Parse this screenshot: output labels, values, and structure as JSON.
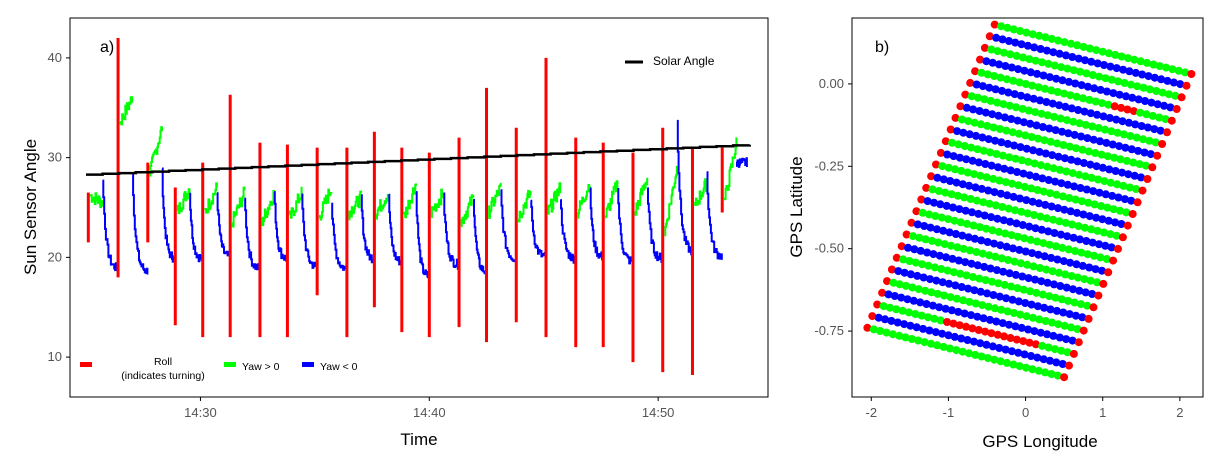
{
  "figure": {
    "panels": [
      "a)",
      "b)"
    ]
  },
  "chart_data": [
    {
      "type": "line",
      "panel_label": "a)",
      "xlabel": "Time",
      "ylabel": "Sun Sensor Angle",
      "x_ticks": [
        "14:30",
        "14:40",
        "14:50"
      ],
      "x_tick_minutes": [
        30,
        40,
        50
      ],
      "xlim_minutes": [
        24.3,
        54.8
      ],
      "y_ticks": [
        10,
        20,
        30,
        40
      ],
      "ylim": [
        6,
        44
      ],
      "grid": false,
      "legend_top": {
        "label": "Solar Angle",
        "color": "#000000",
        "placement": "top-right"
      },
      "legend_bottom": [
        {
          "label": "Roll",
          "sublabel": "(indicates turning)",
          "color": "#ff0000"
        },
        {
          "label": "Yaw > 0",
          "color": "#00ff00"
        },
        {
          "label": "Yaw < 0",
          "color": "#0000ff"
        }
      ],
      "solar_angle": {
        "x": [
          25.0,
          54.0
        ],
        "y": [
          28.3,
          31.3
        ],
        "color": "#000000"
      },
      "cycles": [
        {
          "t": 25.1,
          "green_start": 26.2,
          "green_end": 25.5,
          "blue_top": 28.0,
          "blue_end": 18.8,
          "roll_bottom": 21.5,
          "roll_top": 26.5
        },
        {
          "t": 26.4,
          "green_start": 33.5,
          "green_end": 36.0,
          "blue_top": 28.5,
          "blue_end": 18.5,
          "roll_bottom": 18.0,
          "roll_top": 42.0
        },
        {
          "t": 27.7,
          "green_start": 28.5,
          "green_end": 33.0,
          "blue_top": 28.5,
          "blue_end": 19.8,
          "roll_bottom": 21.5,
          "roll_top": 29.5
        },
        {
          "t": 28.9,
          "green_start": 24.5,
          "green_end": 27.0,
          "blue_top": 26.5,
          "blue_end": 19.8,
          "roll_bottom": 13.2,
          "roll_top": 27.0
        },
        {
          "t": 30.1,
          "green_start": 24.5,
          "green_end": 27.0,
          "blue_top": 26.5,
          "blue_end": 20.0,
          "roll_bottom": 12.0,
          "roll_top": 29.5
        },
        {
          "t": 31.3,
          "green_start": 23.5,
          "green_end": 26.5,
          "blue_top": 26.2,
          "blue_end": 18.8,
          "roll_bottom": 12.0,
          "roll_top": 36.3
        },
        {
          "t": 32.6,
          "green_start": 23.5,
          "green_end": 26.5,
          "blue_top": 26.5,
          "blue_end": 19.8,
          "roll_bottom": 12.0,
          "roll_top": 31.5
        },
        {
          "t": 33.8,
          "green_start": 23.8,
          "green_end": 26.5,
          "blue_top": 26.2,
          "blue_end": 19.0,
          "roll_bottom": 12.0,
          "roll_top": 31.3
        },
        {
          "t": 35.1,
          "green_start": 24.0,
          "green_end": 27.0,
          "blue_top": 25.5,
          "blue_end": 18.8,
          "roll_bottom": 16.2,
          "roll_top": 31.0
        },
        {
          "t": 36.4,
          "green_start": 24.5,
          "green_end": 26.0,
          "blue_top": 26.0,
          "blue_end": 19.8,
          "roll_bottom": 12.0,
          "roll_top": 31.0
        },
        {
          "t": 37.6,
          "green_start": 24.5,
          "green_end": 26.5,
          "blue_top": 26.0,
          "blue_end": 19.5,
          "roll_bottom": 15.0,
          "roll_top": 32.6
        },
        {
          "t": 38.8,
          "green_start": 24.0,
          "green_end": 27.5,
          "blue_top": 26.5,
          "blue_end": 18.0,
          "roll_bottom": 12.5,
          "roll_top": 31.0
        },
        {
          "t": 40.0,
          "green_start": 24.5,
          "green_end": 26.5,
          "blue_top": 26.0,
          "blue_end": 19.2,
          "roll_bottom": 12.0,
          "roll_top": 30.5
        },
        {
          "t": 41.3,
          "green_start": 23.5,
          "green_end": 26.0,
          "blue_top": 26.2,
          "blue_end": 18.5,
          "roll_bottom": 13.0,
          "roll_top": 32.0
        },
        {
          "t": 42.5,
          "green_start": 24.5,
          "green_end": 27.0,
          "blue_top": 26.5,
          "blue_end": 19.8,
          "roll_bottom": 11.5,
          "roll_top": 37.0
        },
        {
          "t": 43.8,
          "green_start": 24.0,
          "green_end": 26.5,
          "blue_top": 26.0,
          "blue_end": 20.0,
          "roll_bottom": 13.5,
          "roll_top": 33.0
        },
        {
          "t": 45.1,
          "green_start": 24.5,
          "green_end": 27.0,
          "blue_top": 26.0,
          "blue_end": 19.8,
          "roll_bottom": 12.0,
          "roll_top": 40.0
        },
        {
          "t": 46.4,
          "green_start": 24.5,
          "green_end": 27.5,
          "blue_top": 26.5,
          "blue_end": 20.0,
          "roll_bottom": 11.0,
          "roll_top": 32.0
        },
        {
          "t": 47.6,
          "green_start": 24.0,
          "green_end": 27.5,
          "blue_top": 27.0,
          "blue_end": 19.5,
          "roll_bottom": 11.0,
          "roll_top": 31.5
        },
        {
          "t": 48.9,
          "green_start": 24.5,
          "green_end": 28.0,
          "blue_top": 27.0,
          "blue_end": 19.8,
          "roll_bottom": 9.5,
          "roll_top": 30.5
        },
        {
          "t": 50.2,
          "green_start": 22.5,
          "green_end": 29.0,
          "blue_top": 34.0,
          "blue_end": 20.5,
          "roll_bottom": 8.5,
          "roll_top": 33.0
        },
        {
          "t": 51.5,
          "green_start": 25.0,
          "green_end": 27.5,
          "blue_top": 28.5,
          "blue_end": 20.0,
          "roll_bottom": 8.2,
          "roll_top": 31.0
        },
        {
          "t": 52.8,
          "green_start": 25.5,
          "green_end": 31.5,
          "blue_top": 29.5,
          "blue_end": 29.5,
          "roll_bottom": 24.5,
          "roll_top": 31.0
        }
      ]
    },
    {
      "type": "scatter",
      "panel_label": "b)",
      "xlabel": "GPS Longitude",
      "ylabel": "GPS Latitude",
      "x_ticks": [
        -2,
        -1,
        0,
        1,
        2
      ],
      "x_tick_labels": [
        "-2",
        "-1",
        "0",
        "1",
        "2"
      ],
      "xlim": [
        -2.25,
        2.3
      ],
      "y_ticks": [
        0.0,
        -0.25,
        -0.5,
        -0.75
      ],
      "y_tick_labels": [
        "0.00",
        "-0.25",
        "-0.50",
        "-0.75"
      ],
      "ylim": [
        -0.95,
        0.2
      ],
      "grid": false,
      "series_colors": {
        "green": "#00ff00",
        "blue": "#0000ff",
        "red": "#ff0000"
      },
      "grid_pattern": {
        "corner_top": [
          -0.4,
          0.18
        ],
        "corner_right": [
          2.15,
          0.03
        ],
        "corner_left": [
          -2.05,
          -0.74
        ],
        "corner_bottom": [
          0.5,
          -0.89
        ],
        "rows": 27,
        "points_per_row": 32,
        "red_segments": [
          {
            "row": 4,
            "from": 0.7,
            "to": 0.82
          },
          {
            "row": 24,
            "from": 0.35,
            "to": 0.82
          }
        ]
      }
    }
  ]
}
